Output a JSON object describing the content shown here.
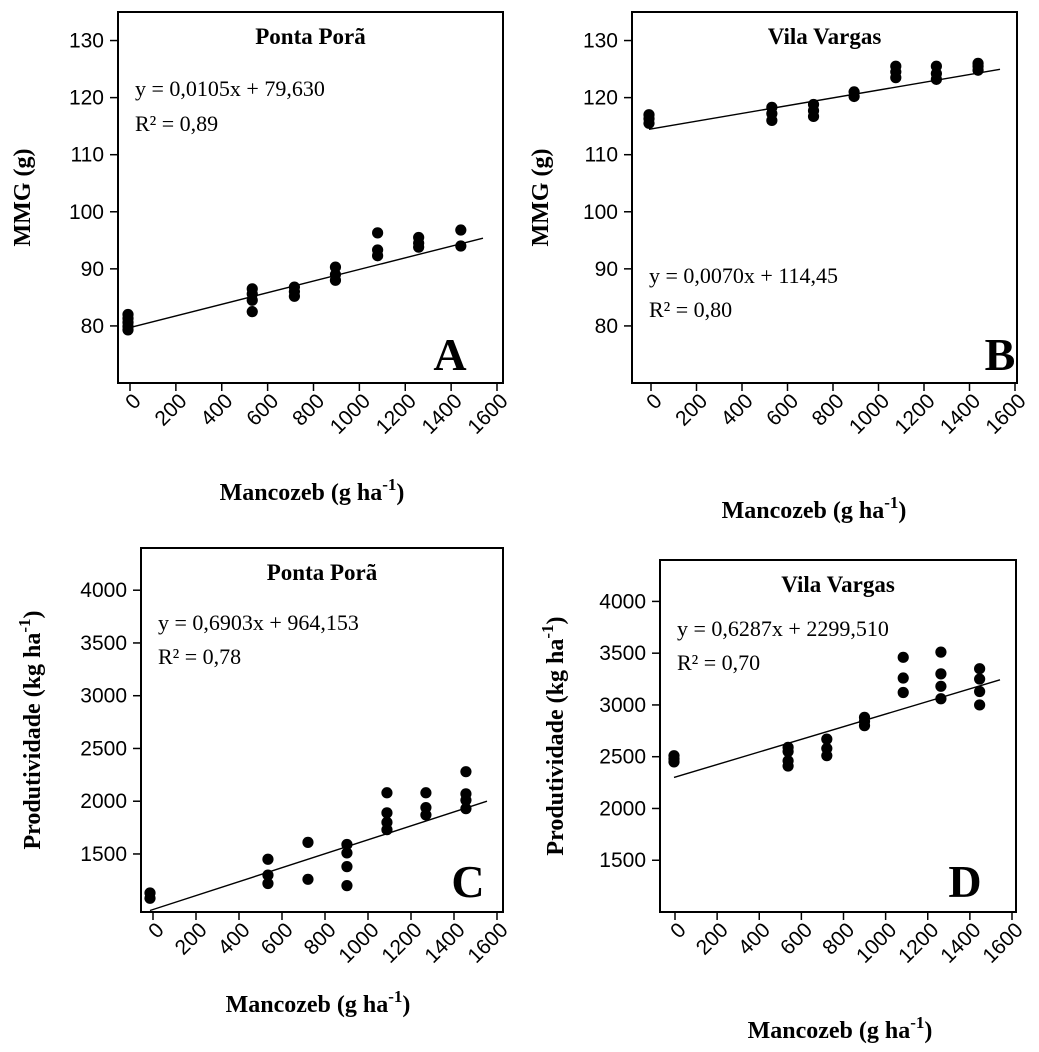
{
  "chart_data": [
    {
      "type": "scatter",
      "panel_letter": "A",
      "title": "Ponta Porã",
      "xlabel": "Mancozeb (g ha",
      "xlabel_sup": "-1",
      "xlabel_end": ")",
      "ylabel": "MMG (g)",
      "ylabel_sup": "",
      "ylabel_end": "",
      "xlim": [
        0,
        1600
      ],
      "ylim": [
        70,
        135
      ],
      "xticks": [
        0,
        200,
        400,
        600,
        800,
        1000,
        1200,
        1400,
        1600
      ],
      "yticks": [
        80,
        90,
        100,
        110,
        120,
        130
      ],
      "equation": "y = 0,0105x + 79,630",
      "r2": "R² = 0,89",
      "trendline": {
        "slope": 0.0105,
        "intercept": 79.63
      },
      "grid": false,
      "points": [
        {
          "x": 0,
          "y": 79.3
        },
        {
          "x": 0,
          "y": 79.9
        },
        {
          "x": 0,
          "y": 80.6
        },
        {
          "x": 0,
          "y": 81.3
        },
        {
          "x": 0,
          "y": 82.0
        },
        {
          "x": 560,
          "y": 82.5
        },
        {
          "x": 560,
          "y": 84.5
        },
        {
          "x": 560,
          "y": 85.6
        },
        {
          "x": 560,
          "y": 86.5
        },
        {
          "x": 750,
          "y": 85.2
        },
        {
          "x": 750,
          "y": 86.0
        },
        {
          "x": 750,
          "y": 86.8
        },
        {
          "x": 935,
          "y": 88.0
        },
        {
          "x": 935,
          "y": 89.0
        },
        {
          "x": 935,
          "y": 90.3
        },
        {
          "x": 1125,
          "y": 92.3
        },
        {
          "x": 1125,
          "y": 93.3
        },
        {
          "x": 1125,
          "y": 96.3
        },
        {
          "x": 1310,
          "y": 93.8
        },
        {
          "x": 1310,
          "y": 94.5
        },
        {
          "x": 1310,
          "y": 95.5
        },
        {
          "x": 1500,
          "y": 94.0
        },
        {
          "x": 1500,
          "y": 96.8
        }
      ]
    },
    {
      "type": "scatter",
      "panel_letter": "B",
      "title": "Vila Vargas",
      "xlabel": "Mancozeb (g ha",
      "xlabel_sup": "-1",
      "xlabel_end": ")",
      "ylabel": "MMG (g)",
      "ylabel_sup": "",
      "ylabel_end": "",
      "xlim": [
        0,
        1600
      ],
      "ylim": [
        70,
        135
      ],
      "xticks": [
        0,
        200,
        400,
        600,
        800,
        1000,
        1200,
        1400,
        1600
      ],
      "yticks": [
        80,
        90,
        100,
        110,
        120,
        130
      ],
      "equation": "y = 0,0070x + 114,45",
      "r2": "R² = 0,80",
      "trendline": {
        "slope": 0.007,
        "intercept": 114.45
      },
      "grid": false,
      "points": [
        {
          "x": 0,
          "y": 115.5
        },
        {
          "x": 0,
          "y": 116.3
        },
        {
          "x": 0,
          "y": 117.0
        },
        {
          "x": 560,
          "y": 116.0
        },
        {
          "x": 560,
          "y": 117.2
        },
        {
          "x": 560,
          "y": 118.3
        },
        {
          "x": 750,
          "y": 116.7
        },
        {
          "x": 750,
          "y": 117.7
        },
        {
          "x": 750,
          "y": 118.8
        },
        {
          "x": 935,
          "y": 120.2
        },
        {
          "x": 935,
          "y": 121.0
        },
        {
          "x": 1125,
          "y": 123.5
        },
        {
          "x": 1125,
          "y": 124.5
        },
        {
          "x": 1125,
          "y": 125.5
        },
        {
          "x": 1310,
          "y": 123.2
        },
        {
          "x": 1310,
          "y": 124.2
        },
        {
          "x": 1310,
          "y": 125.5
        },
        {
          "x": 1500,
          "y": 124.8
        },
        {
          "x": 1500,
          "y": 125.5
        },
        {
          "x": 1500,
          "y": 126.0
        }
      ]
    },
    {
      "type": "scatter",
      "panel_letter": "C",
      "title": "Ponta Porã",
      "xlabel": "Mancozeb (g ha",
      "xlabel_sup": "-1",
      "xlabel_end": ")",
      "ylabel": "Produtividade (kg ha",
      "ylabel_sup": "-1",
      "ylabel_end": ")",
      "xlim": [
        0,
        1600
      ],
      "ylim": [
        950,
        4400
      ],
      "xticks": [
        0,
        200,
        400,
        600,
        800,
        1000,
        1200,
        1400,
        1600
      ],
      "yticks": [
        1500,
        2000,
        2500,
        3000,
        3500,
        4000
      ],
      "equation": "y = 0,6903x + 964,153",
      "r2": "R² = 0,78",
      "trendline": {
        "slope": 0.6903,
        "intercept": 964.153
      },
      "grid": false,
      "points": [
        {
          "x": 0,
          "y": 1080
        },
        {
          "x": 0,
          "y": 1130
        },
        {
          "x": 560,
          "y": 1220
        },
        {
          "x": 560,
          "y": 1300
        },
        {
          "x": 560,
          "y": 1450
        },
        {
          "x": 750,
          "y": 1260
        },
        {
          "x": 750,
          "y": 1610
        },
        {
          "x": 935,
          "y": 1200
        },
        {
          "x": 935,
          "y": 1380
        },
        {
          "x": 935,
          "y": 1510
        },
        {
          "x": 935,
          "y": 1590
        },
        {
          "x": 1125,
          "y": 1730
        },
        {
          "x": 1125,
          "y": 1800
        },
        {
          "x": 1125,
          "y": 1890
        },
        {
          "x": 1125,
          "y": 2080
        },
        {
          "x": 1310,
          "y": 1870
        },
        {
          "x": 1310,
          "y": 1940
        },
        {
          "x": 1310,
          "y": 2080
        },
        {
          "x": 1500,
          "y": 1930
        },
        {
          "x": 1500,
          "y": 2010
        },
        {
          "x": 1500,
          "y": 2070
        },
        {
          "x": 1500,
          "y": 2280
        }
      ]
    },
    {
      "type": "scatter",
      "panel_letter": "D",
      "title": "Vila Vargas",
      "xlabel": "Mancozeb (g ha",
      "xlabel_sup": "-1",
      "xlabel_end": ")",
      "ylabel": "Produtividade (kg ha",
      "ylabel_sup": "-1",
      "ylabel_end": ")",
      "xlim": [
        0,
        1600
      ],
      "ylim": [
        1000,
        4400
      ],
      "xticks": [
        0,
        200,
        400,
        600,
        800,
        1000,
        1200,
        1400,
        1600
      ],
      "yticks": [
        1500,
        2000,
        2500,
        3000,
        3500,
        4000
      ],
      "equation": "y = 0,6287x + 2299,510",
      "r2": "R² = 0,70",
      "trendline": {
        "slope": 0.6287,
        "intercept": 2299.51
      },
      "grid": false,
      "points": [
        {
          "x": 0,
          "y": 2450
        },
        {
          "x": 0,
          "y": 2480
        },
        {
          "x": 0,
          "y": 2510
        },
        {
          "x": 560,
          "y": 2410
        },
        {
          "x": 560,
          "y": 2460
        },
        {
          "x": 560,
          "y": 2550
        },
        {
          "x": 560,
          "y": 2590
        },
        {
          "x": 750,
          "y": 2510
        },
        {
          "x": 750,
          "y": 2580
        },
        {
          "x": 750,
          "y": 2670
        },
        {
          "x": 935,
          "y": 2800
        },
        {
          "x": 935,
          "y": 2840
        },
        {
          "x": 935,
          "y": 2880
        },
        {
          "x": 1125,
          "y": 3120
        },
        {
          "x": 1125,
          "y": 3260
        },
        {
          "x": 1125,
          "y": 3460
        },
        {
          "x": 1310,
          "y": 3060
        },
        {
          "x": 1310,
          "y": 3180
        },
        {
          "x": 1310,
          "y": 3300
        },
        {
          "x": 1310,
          "y": 3510
        },
        {
          "x": 1500,
          "y": 3000
        },
        {
          "x": 1500,
          "y": 3130
        },
        {
          "x": 1500,
          "y": 3250
        },
        {
          "x": 1500,
          "y": 3350
        }
      ]
    }
  ]
}
